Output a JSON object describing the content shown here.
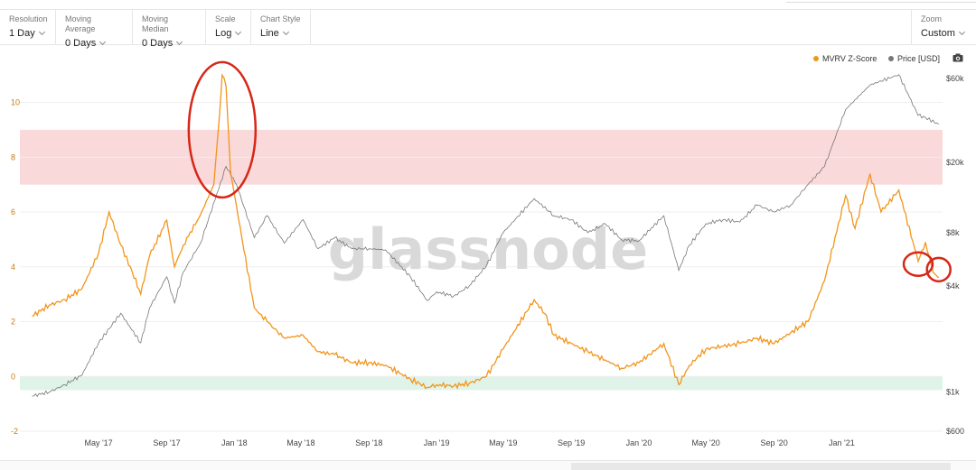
{
  "toolbar": {
    "resolution": {
      "label": "Resolution",
      "value": "1 Day"
    },
    "moving_average": {
      "label": "Moving Average",
      "value": "0 Days"
    },
    "moving_median": {
      "label": "Moving Median",
      "value": "0 Days"
    },
    "scale": {
      "label": "Scale",
      "value": "Log"
    },
    "chart_style": {
      "label": "Chart Style",
      "value": "Line"
    },
    "zoom": {
      "label": "Zoom",
      "value": "Custom"
    }
  },
  "watermark": "glassnode",
  "icons": {
    "camera": "camera-icon",
    "chevron": "chevron-down-icon"
  },
  "chart_data": {
    "type": "line",
    "title": "",
    "xlabel": "",
    "ylabel": "",
    "legend_position": "top-right",
    "x_ticks": [
      "May '17",
      "Sep '17",
      "Jan '18",
      "May '18",
      "Sep '18",
      "Jan '19",
      "May '19",
      "Sep '19",
      "Jan '20",
      "May '20",
      "Sep '20",
      "Jan '21"
    ],
    "y_left": {
      "ticks": [
        -2,
        0,
        2,
        4,
        6,
        8,
        10
      ],
      "range": [
        -2,
        11.5
      ]
    },
    "y_right": {
      "scale": "log",
      "ticks": [
        "$600",
        "$1k",
        "$4k",
        "$8k",
        "$20k",
        "$60k"
      ],
      "tick_values": [
        600,
        1000,
        4000,
        8000,
        20000,
        60000
      ],
      "range": [
        600,
        75000
      ]
    },
    "bands": [
      {
        "from": 7,
        "to": 9,
        "color": "#f9d9d9"
      },
      {
        "from": -0.5,
        "to": 0,
        "color": "#dff3e8"
      }
    ],
    "annotations": [
      {
        "shape": "ellipse",
        "around": "Dec '17 peak",
        "color": "#d62718"
      },
      {
        "shape": "ellipse",
        "around": "May '21 dip",
        "color": "#d62718"
      },
      {
        "shape": "ellipse",
        "around": "Jun '21 last value",
        "color": "#d62718"
      }
    ],
    "series": [
      {
        "name": "MVRV Z-Score",
        "color": "#f2951b",
        "axis": "left",
        "x": [
          "2017-01-01",
          "2017-02-01",
          "2017-03-01",
          "2017-04-01",
          "2017-05-01",
          "2017-05-20",
          "2017-06-10",
          "2017-07-01",
          "2017-07-16",
          "2017-08-01",
          "2017-09-01",
          "2017-09-15",
          "2017-10-01",
          "2017-11-01",
          "2017-11-25",
          "2017-12-05",
          "2017-12-10",
          "2017-12-17",
          "2017-12-25",
          "2018-01-05",
          "2018-01-15",
          "2018-02-06",
          "2018-03-01",
          "2018-04-01",
          "2018-05-05",
          "2018-06-01",
          "2018-07-01",
          "2018-08-01",
          "2018-09-01",
          "2018-10-01",
          "2018-11-15",
          "2018-12-15",
          "2019-01-01",
          "2019-02-01",
          "2019-03-01",
          "2019-04-01",
          "2019-05-01",
          "2019-06-26",
          "2019-07-15",
          "2019-08-01",
          "2019-09-01",
          "2019-10-01",
          "2019-11-01",
          "2019-12-01",
          "2020-01-01",
          "2020-02-15",
          "2020-03-13",
          "2020-04-01",
          "2020-05-01",
          "2020-06-01",
          "2020-07-01",
          "2020-08-01",
          "2020-09-01",
          "2020-10-01",
          "2020-11-01",
          "2020-12-01",
          "2021-01-08",
          "2021-01-25",
          "2021-02-21",
          "2021-03-13",
          "2021-04-14",
          "2021-05-19",
          "2021-06-01",
          "2021-06-15",
          "2021-06-25"
        ],
        "values": [
          2.2,
          2.6,
          2.8,
          3.2,
          4.5,
          6.0,
          4.8,
          3.8,
          3.0,
          4.4,
          5.7,
          4.0,
          4.8,
          5.9,
          7.0,
          9.5,
          11.0,
          10.6,
          7.5,
          6.2,
          5.0,
          2.5,
          2.0,
          1.4,
          1.5,
          0.9,
          0.8,
          0.5,
          0.5,
          0.4,
          -0.1,
          -0.4,
          -0.3,
          -0.35,
          -0.25,
          0.0,
          1.0,
          2.8,
          2.3,
          1.5,
          1.2,
          0.9,
          0.6,
          0.3,
          0.5,
          1.2,
          -0.3,
          0.4,
          1.0,
          1.1,
          1.2,
          1.4,
          1.2,
          1.6,
          2.0,
          3.5,
          6.6,
          5.4,
          7.4,
          6.0,
          6.8,
          4.2,
          4.9,
          3.8,
          3.6
        ]
      },
      {
        "name": "Price [USD]",
        "color": "#777777",
        "axis": "right",
        "x": [
          "2017-01-01",
          "2017-02-01",
          "2017-03-01",
          "2017-04-01",
          "2017-05-01",
          "2017-06-10",
          "2017-07-16",
          "2017-08-01",
          "2017-09-01",
          "2017-09-15",
          "2017-10-01",
          "2017-11-01",
          "2017-12-17",
          "2018-01-05",
          "2018-02-06",
          "2018-03-01",
          "2018-04-01",
          "2018-05-05",
          "2018-06-01",
          "2018-07-01",
          "2018-08-01",
          "2018-09-01",
          "2018-10-01",
          "2018-11-15",
          "2018-12-15",
          "2019-01-01",
          "2019-02-01",
          "2019-03-01",
          "2019-04-01",
          "2019-05-01",
          "2019-06-26",
          "2019-08-01",
          "2019-09-01",
          "2019-10-01",
          "2019-11-01",
          "2019-12-01",
          "2020-01-01",
          "2020-02-15",
          "2020-03-13",
          "2020-04-01",
          "2020-05-01",
          "2020-06-01",
          "2020-07-01",
          "2020-08-01",
          "2020-09-01",
          "2020-10-01",
          "2020-11-01",
          "2020-12-01",
          "2021-01-08",
          "2021-02-21",
          "2021-03-13",
          "2021-04-14",
          "2021-05-19",
          "2021-06-01",
          "2021-06-25"
        ],
        "values": [
          950,
          1000,
          1100,
          1250,
          1900,
          2800,
          1900,
          3000,
          4500,
          3200,
          4800,
          7000,
          19000,
          15000,
          7500,
          10000,
          7000,
          9500,
          6500,
          7500,
          6500,
          6500,
          6400,
          4500,
          3300,
          3700,
          3500,
          4000,
          5200,
          8000,
          12500,
          10000,
          9500,
          8000,
          9000,
          7300,
          7200,
          10000,
          4900,
          6800,
          9000,
          9500,
          9200,
          11500,
          10500,
          11500,
          15000,
          19000,
          40000,
          55000,
          58000,
          63000,
          37000,
          36000,
          33000
        ]
      }
    ]
  }
}
